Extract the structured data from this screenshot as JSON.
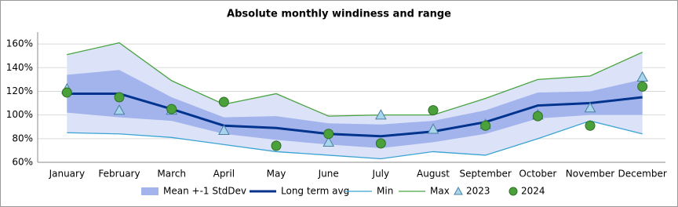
{
  "chart_data": {
    "type": "line",
    "title": "Absolute monthly windiness and range",
    "categories": [
      "January",
      "February",
      "March",
      "April",
      "May",
      "June",
      "July",
      "August",
      "September",
      "October",
      "November",
      "December"
    ],
    "ylim": [
      60,
      170
    ],
    "yticks": [
      {
        "value": 60,
        "label": "60%"
      },
      {
        "value": 80,
        "label": "80%"
      },
      {
        "value": 100,
        "label": "100%"
      },
      {
        "value": 120,
        "label": "120%"
      },
      {
        "value": 140,
        "label": "140%"
      },
      {
        "value": 160,
        "label": "160%"
      }
    ],
    "grid": true,
    "range_fill": "#dce3f8",
    "legend": "bottom",
    "series": [
      {
        "name": "Mean +-1 StdDev",
        "kind": "band",
        "color": "#a3b4ec",
        "values": [
          16,
          20,
          10,
          7,
          10,
          9,
          10,
          9,
          10,
          11,
          10,
          15
        ]
      },
      {
        "name": "Long term avg",
        "kind": "line",
        "color": "#00338d",
        "values": [
          118,
          118,
          105,
          91,
          89,
          84,
          82,
          86,
          94,
          108,
          110,
          115
        ]
      },
      {
        "name": "Min",
        "kind": "line",
        "color": "#3aa3d3",
        "values": [
          85,
          84,
          81,
          75,
          69,
          66,
          63,
          69,
          66,
          80,
          95,
          84
        ]
      },
      {
        "name": "Max",
        "kind": "line",
        "color": "#48a440",
        "values": [
          151,
          161,
          129,
          109,
          118,
          99,
          100,
          100,
          114,
          130,
          133,
          153
        ]
      },
      {
        "name": "2023",
        "kind": "triangle",
        "color": "#a8d4ec",
        "values": [
          122,
          104,
          104,
          87,
          null,
          77,
          100,
          88,
          92,
          100,
          106,
          132
        ]
      },
      {
        "name": "2024",
        "kind": "circle",
        "color": "#4aa03a",
        "values": [
          119,
          115,
          105,
          111,
          74,
          84,
          76,
          104,
          91,
          99,
          91,
          124
        ]
      }
    ]
  }
}
